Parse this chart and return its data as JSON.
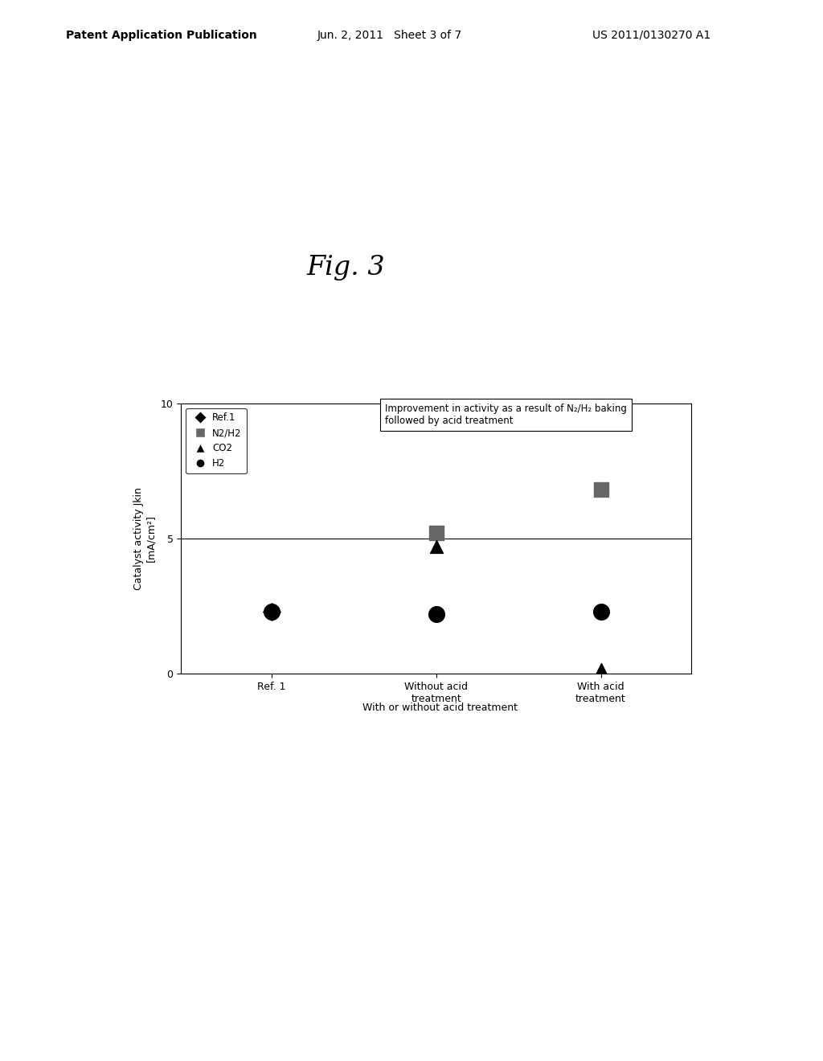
{
  "title": "Fig. 3",
  "header_left": "Patent Application Publication",
  "header_mid": "Jun. 2, 2011   Sheet 3 of 7",
  "header_right": "US 2011/0130270 A1",
  "ylabel_line1": "Catalyst activity Jkin",
  "ylabel_line2": "[mA/cm²]",
  "xlabel": "With or without acid treatment",
  "xtick_labels": [
    "Ref. 1",
    "Without acid\ntreatment",
    "With acid\ntreatment"
  ],
  "xtick_positions": [
    0,
    1,
    2
  ],
  "ylim": [
    0,
    10
  ],
  "ytick_positions": [
    0,
    5,
    10
  ],
  "annotation_text": "Improvement in activity as a result of N₂/H₂ baking\nfollowed by acid treatment",
  "data_ref1": {
    "x": [
      0
    ],
    "y": [
      2.3
    ]
  },
  "data_n2h2": {
    "x": [
      1,
      2
    ],
    "y": [
      5.2,
      6.8
    ]
  },
  "data_co2": {
    "x": [
      1,
      2
    ],
    "y": [
      4.7,
      0.15
    ]
  },
  "data_h2": {
    "x": [
      0,
      1,
      2
    ],
    "y": [
      2.3,
      2.2,
      2.3
    ]
  },
  "hline_y": 5.0,
  "background_color": "#ffffff",
  "plot_bg_color": "#ffffff"
}
